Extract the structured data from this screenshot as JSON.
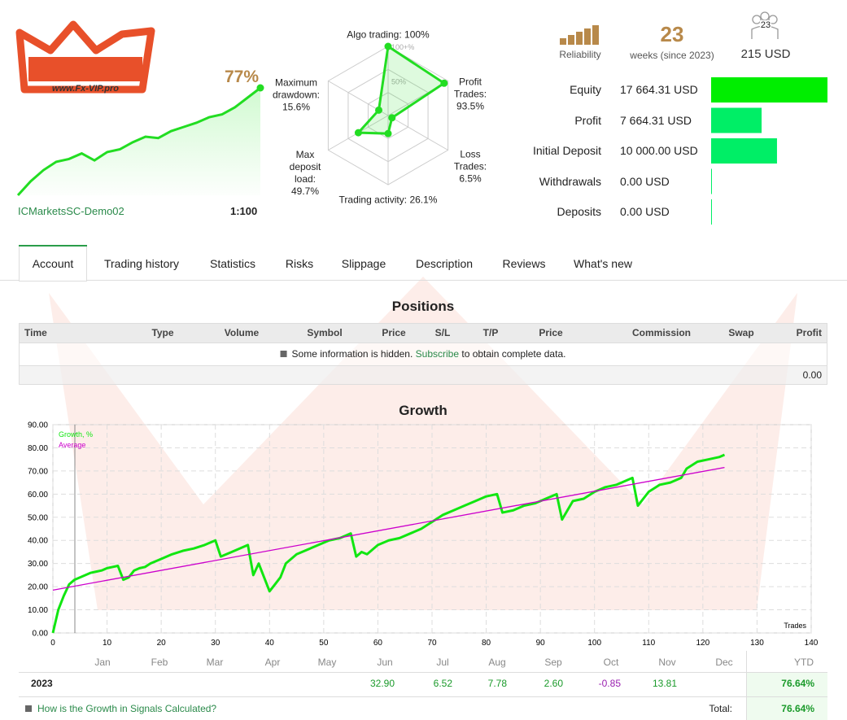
{
  "header": {
    "logo_text": "www.Fx-VIP.pro",
    "gain": "77%",
    "account": "ICMarketsSC-Demo02",
    "leverage": "1:100",
    "sparkline": [
      0,
      10,
      18,
      24,
      26,
      30,
      25,
      31,
      33,
      38,
      42,
      41,
      46,
      49,
      52,
      56,
      58,
      63,
      70,
      77
    ]
  },
  "radar": {
    "color": "#22dd22",
    "axes": [
      {
        "label": "Algo trading:",
        "value": 100,
        "value_label": "100%"
      },
      {
        "label": "Profit Trades:",
        "value": 93.5,
        "value_label": "93.5%"
      },
      {
        "label": "Loss Trades:",
        "value": 6.5,
        "value_label": "6.5%"
      },
      {
        "label": "Trading activity:",
        "value": 26.1,
        "value_label": "26.1%"
      },
      {
        "label": "Max deposit load:",
        "value": 49.7,
        "value_label": "49.7%"
      },
      {
        "label": "Maximum drawdown:",
        "value": 15.6,
        "value_label": "15.6%"
      }
    ],
    "ring_labels": [
      {
        "value": 100,
        "label": "100+%"
      },
      {
        "value": 50,
        "label": "50%"
      }
    ]
  },
  "stats": {
    "reliability": "Reliability",
    "weeks": "23",
    "weeks_label": "weeks (since 2023)",
    "subscribers": "23",
    "price": "215 USD"
  },
  "balance": {
    "labels": [
      "Equity",
      "Profit",
      "Initial Deposit",
      "Withdrawals",
      "Deposits"
    ],
    "values": [
      17664.31,
      7664.31,
      10000,
      0,
      0
    ],
    "value_labels": [
      "17 664.31 USD",
      "7 664.31 USD",
      "10 000.00 USD",
      "0.00 USD",
      "0.00 USD"
    ],
    "colors": [
      "#00ee00",
      "#00ee66",
      "#00ee66",
      "#00ee66",
      "#00ee66"
    ]
  },
  "tabs": {
    "items": [
      "Account",
      "Trading history",
      "Statistics",
      "Risks",
      "Slippage",
      "Description",
      "Reviews",
      "What's new"
    ],
    "active": 0
  },
  "positions": {
    "title": "Positions",
    "columns": [
      "Time",
      "Type",
      "Volume",
      "Symbol",
      "Price",
      "S/L",
      "T/P",
      "Price",
      "Commission",
      "Swap",
      "Profit"
    ],
    "notice": {
      "text": "Some information is hidden.",
      "link": "Subscribe",
      "after": "to obtain complete data."
    },
    "total": "0.00"
  },
  "chart_data": {
    "type": "line",
    "title": "Growth",
    "x_label": "Trades",
    "grid": true,
    "legend": "upper left",
    "xlim": [
      0,
      140
    ],
    "xticks": [
      0,
      10,
      20,
      30,
      40,
      50,
      60,
      70,
      80,
      90,
      100,
      110,
      120,
      130,
      140
    ],
    "ylim": [
      0,
      90
    ],
    "yticks": [
      {
        "value": 0,
        "label": "0.00"
      },
      {
        "value": 10,
        "label": "10.00"
      },
      {
        "value": 20,
        "label": "20.00"
      },
      {
        "value": 30,
        "label": "30.00"
      },
      {
        "value": 40,
        "label": "40.00"
      },
      {
        "value": 50,
        "label": "50.00"
      },
      {
        "value": 60,
        "label": "60.00"
      },
      {
        "value": 70,
        "label": "70.00"
      },
      {
        "value": 80,
        "label": "80.00"
      },
      {
        "value": 90,
        "label": "90.00"
      }
    ],
    "series": [
      {
        "name": "Growth, %",
        "color": "#11e611",
        "x": [
          0,
          1,
          2,
          3,
          4,
          5,
          6,
          7,
          8,
          9,
          10,
          11,
          12,
          13,
          14,
          15,
          16,
          17,
          18,
          20,
          22,
          24,
          26,
          28,
          30,
          31,
          33,
          35,
          36,
          37,
          38,
          40,
          41,
          42,
          43,
          45,
          47,
          49,
          51,
          53,
          55,
          56,
          57,
          58,
          60,
          62,
          64,
          66,
          68,
          70,
          72,
          74,
          76,
          78,
          80,
          82,
          83,
          85,
          87,
          89,
          91,
          93,
          94,
          96,
          98,
          100,
          102,
          104,
          106,
          107,
          108,
          110,
          112,
          114,
          116,
          117,
          119,
          121,
          123,
          124
        ],
        "values": [
          0,
          10,
          16,
          21,
          23,
          24,
          25,
          26,
          26.5,
          27,
          28,
          28.5,
          29,
          23,
          24,
          27,
          28,
          28.5,
          30,
          32,
          34,
          35.5,
          36.5,
          38,
          40,
          33,
          35,
          37,
          38,
          25,
          30,
          18,
          21,
          24,
          30,
          34,
          36,
          38,
          40,
          41,
          43,
          33,
          35,
          34,
          38,
          40,
          41,
          43,
          45,
          48,
          51,
          53,
          55,
          57,
          59,
          60,
          52,
          53,
          55,
          56,
          58,
          60,
          49,
          57,
          58,
          61,
          63,
          64,
          66,
          67,
          55,
          61,
          64,
          65,
          67,
          71,
          74,
          75,
          76,
          77
        ]
      },
      {
        "name": "Average",
        "color": "#cc00cc",
        "x": [
          0,
          124
        ],
        "values": [
          18.5,
          71.5
        ]
      }
    ]
  },
  "monthly": {
    "months": [
      "Jan",
      "Feb",
      "Mar",
      "Apr",
      "May",
      "Jun",
      "Jul",
      "Aug",
      "Sep",
      "Oct",
      "Nov",
      "Dec"
    ],
    "ytd_header": "YTD",
    "rows": [
      {
        "year": "2023",
        "values": [
          null,
          null,
          null,
          null,
          null,
          "32.90",
          "6.52",
          "7.78",
          "2.60",
          "-0.85",
          "13.81",
          null
        ],
        "ytd": "76.64%"
      }
    ],
    "link": "How is the Growth in Signals Calculated?",
    "total_label": "Total:",
    "total": "76.64%"
  }
}
